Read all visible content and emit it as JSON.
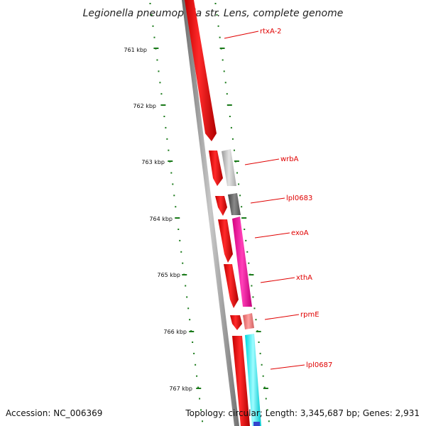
{
  "title": "Legionella pneumophila str. Lens, complete genome",
  "footer": {
    "accession": "Accession: NC_006369",
    "summary": "Topology: circular; Length: 3,345,687 bp; Genes: 2,931"
  },
  "kbp_labels": [
    "761 kbp",
    "762 kbp",
    "763 kbp",
    "764 kbp",
    "765 kbp",
    "766 kbp",
    "767 kbp"
  ],
  "gene_labels": [
    "rtxA-2",
    "wrbA",
    "lpl0683",
    "exoA",
    "xthA",
    "rpmE",
    "lpl0687"
  ],
  "colors": {
    "cds": "#ff0000",
    "backbone": "#808080",
    "tick": "#1a7a1a",
    "label": "#e00000",
    "wrbA": "#c8c8c8",
    "lpl0683": "#6a6a6a",
    "exoA": "#ff1aa8",
    "rpmE": "#f08080",
    "lpl0687": "#00ffff"
  }
}
